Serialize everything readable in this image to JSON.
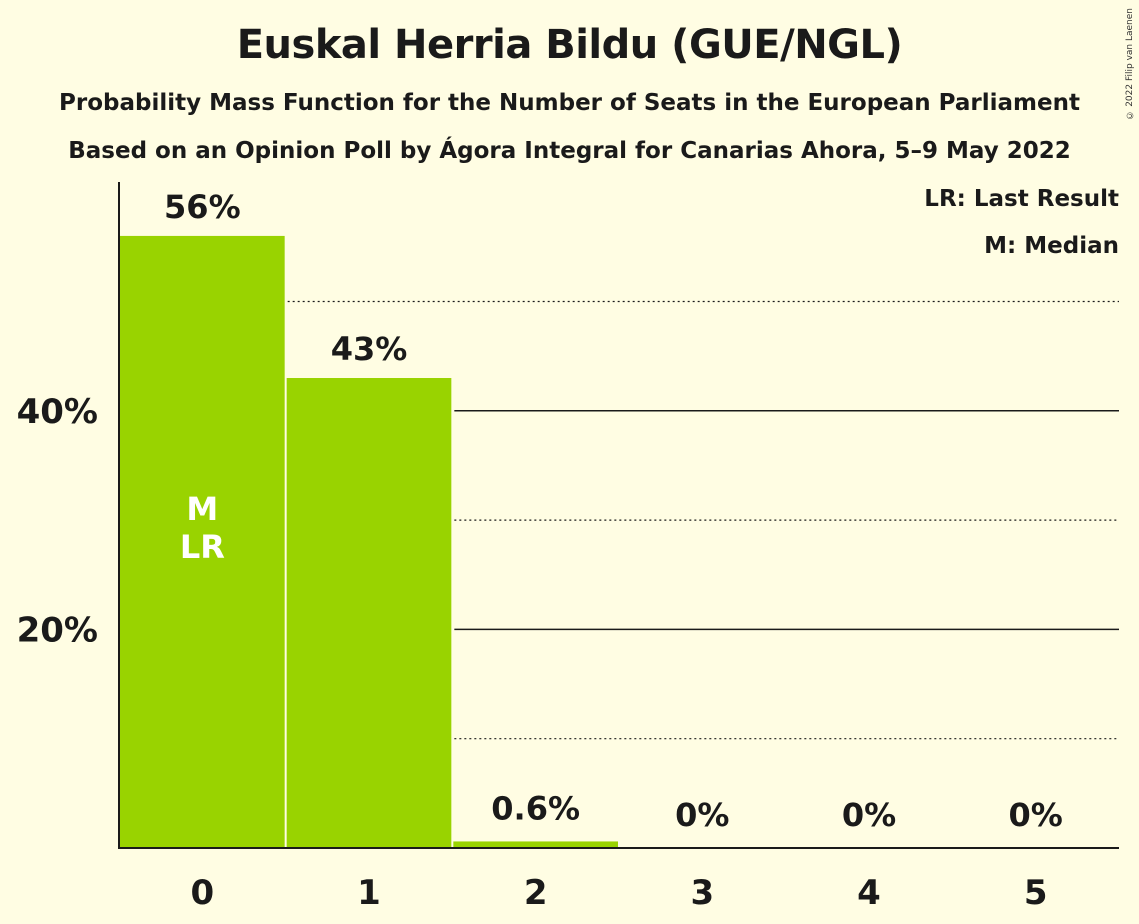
{
  "chart_data": {
    "type": "bar",
    "title": "Euskal Herria Bildu (GUE/NGL)",
    "subtitle": "Probability Mass Function for the Number of Seats in the European Parliament",
    "subtitle2": "Based on an Opinion Poll by Ágora Integral for Canarias Ahora, 5–9 May 2022",
    "copyright": "© 2022 Filip van Laenen",
    "categories": [
      "0",
      "1",
      "2",
      "3",
      "4",
      "5"
    ],
    "values": [
      56,
      43,
      0.6,
      0,
      0,
      0
    ],
    "value_labels": [
      "56%",
      "43%",
      "0.6%",
      "0%",
      "0%",
      "0%"
    ],
    "ylim": [
      0,
      60
    ],
    "yticks": [
      20,
      40
    ],
    "ytick_labels": [
      "20%",
      "40%"
    ],
    "minor_gridlines": [
      10,
      30,
      50
    ],
    "bar_color": "#99D300",
    "markers": {
      "category": "0",
      "labels": [
        "M",
        "LR"
      ]
    },
    "legend": {
      "position": "top-right",
      "entries": [
        "LR: Last Result",
        "M: Median"
      ]
    },
    "xlabel": "",
    "ylabel": ""
  }
}
